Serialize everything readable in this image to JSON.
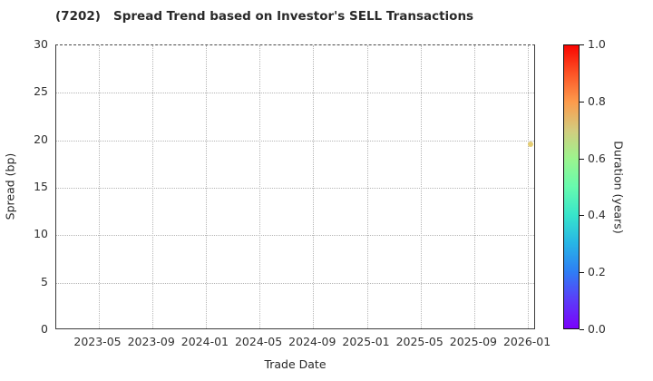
{
  "figure": {
    "title": "(7202)   Spread Trend based on Investor's SELL Transactions"
  },
  "chart_data": {
    "type": "scatter",
    "title": "(7202)   Spread Trend based on Investor's SELL Transactions",
    "xlabel": "Trade Date",
    "ylabel": "Spread (bp)",
    "x_tick_labels": [
      "2023-05",
      "2023-09",
      "2024-01",
      "2024-05",
      "2024-09",
      "2025-01",
      "2025-05",
      "2025-09",
      "2026-01"
    ],
    "x_axis_start_tick": "2023-05",
    "x_months_per_tick": 4,
    "y_ticks": [
      0,
      5,
      10,
      15,
      20,
      25,
      30
    ],
    "ylim": [
      0,
      30
    ],
    "grid": true,
    "points": [
      {
        "trade_date": "2026-01-06",
        "spread_bp": 19.6,
        "duration_years": 0.65,
        "marker_color": "#e5cd74"
      }
    ],
    "colorbar": {
      "label": "Duration (years)",
      "ticks": [
        0.0,
        0.2,
        0.4,
        0.6,
        0.8,
        1.0
      ],
      "range": [
        0.0,
        1.0
      ],
      "colormap": "rainbow",
      "gradient_stops": [
        {
          "t": 0.0,
          "color": "#7a01fb"
        },
        {
          "t": 0.1,
          "color": "#5b3cf9"
        },
        {
          "t": 0.2,
          "color": "#2e7ef5"
        },
        {
          "t": 0.3,
          "color": "#27b5e6"
        },
        {
          "t": 0.4,
          "color": "#37e5cb"
        },
        {
          "t": 0.5,
          "color": "#67fbae"
        },
        {
          "t": 0.6,
          "color": "#9cf48e"
        },
        {
          "t": 0.7,
          "color": "#d3cc7e"
        },
        {
          "t": 0.8,
          "color": "#fd9b4c"
        },
        {
          "t": 0.9,
          "color": "#fd5426"
        },
        {
          "t": 1.0,
          "color": "#f90501"
        }
      ]
    }
  },
  "colors": {
    "background": "#ffffff",
    "axis": "#3c3c3c",
    "grid": "#b5b5b5",
    "text": "#262626"
  }
}
